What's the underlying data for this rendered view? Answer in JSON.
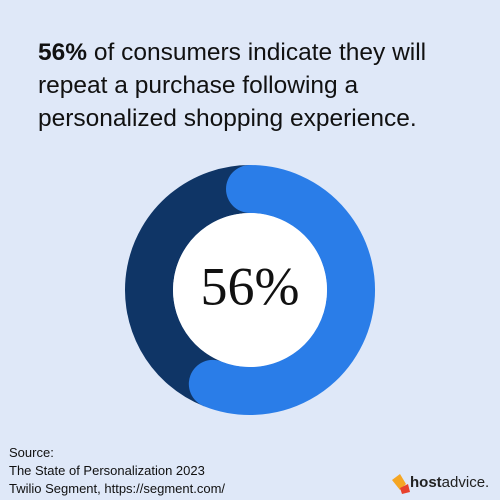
{
  "chart_data": {
    "type": "donut",
    "title_bold": "56%",
    "title_rest": "of consumers indicate they will repeat a purchase following a personalized shopping experience.",
    "values": [
      56,
      44
    ],
    "value_labels": [
      "56%",
      null
    ],
    "colors": [
      "#2a7de8",
      "#0f3566"
    ],
    "source_heading": "Source:",
    "source_lines": [
      "The State of Personalization 2023",
      "Twilio Segment, https://segment.com/"
    ],
    "logo_bold": "host",
    "logo_rest": "advice."
  }
}
